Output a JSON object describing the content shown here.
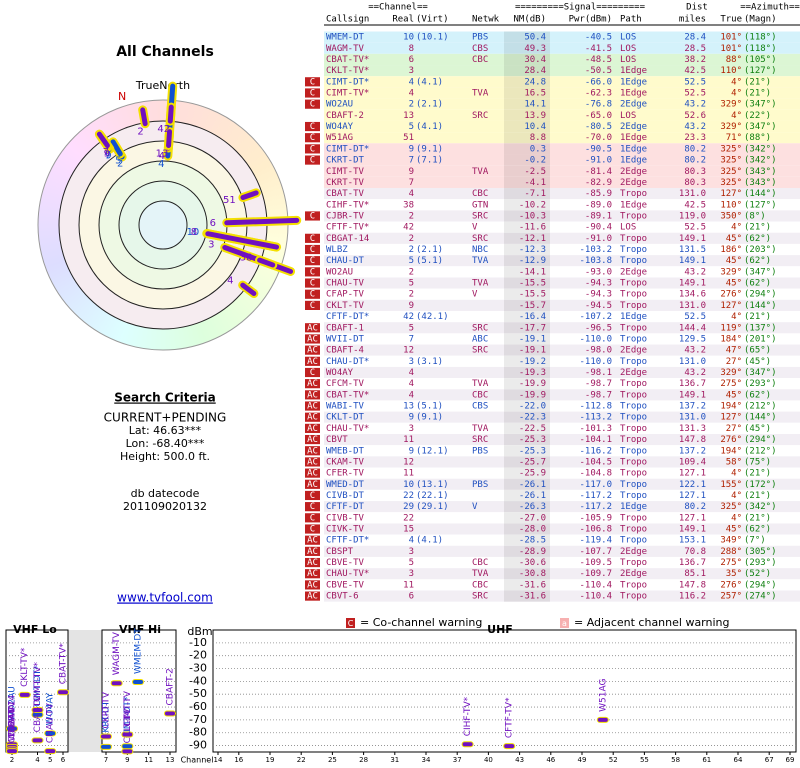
{
  "left": {
    "title": "All Channels",
    "north": "TrueNorth",
    "n_marker": "N",
    "criteria_title": "Search Criteria",
    "criteria": [
      "CURRENT+PENDING",
      "Lat: 46.63***",
      "Lon: -68.40***",
      "Height: 500.0 ft."
    ],
    "datecode_label": "db datecode",
    "datecode": "201109020132",
    "link": "www.tvfool.com"
  },
  "table": {
    "groups": [
      "==Channel==",
      "=========Signal=========",
      "Dist",
      "==Azimuth=="
    ],
    "columns": [
      "Callsign",
      "Real",
      "(Virt)",
      "Netwk",
      "NM(dB)",
      "Pwr(dBm)",
      "Path",
      "miles",
      "True",
      "(Magn)"
    ],
    "rows": [
      [
        null,
        "WMEM-DT",
        "10",
        "(10.1)",
        "PBS",
        "50.4",
        "-40.5",
        "LOS",
        "28.4",
        "101°",
        "(118°)"
      ],
      [
        null,
        "WAGM-TV",
        "8",
        null,
        "CBS",
        "49.3",
        "-41.5",
        "LOS",
        "28.5",
        "101°",
        "(118°)"
      ],
      [
        null,
        "CBAT-TV*",
        "6",
        null,
        "CBC",
        "30.4",
        "-48.5",
        "LOS",
        "38.2",
        "88°",
        "(105°)"
      ],
      [
        null,
        "CKLT-TV*",
        "3",
        null,
        null,
        "28.4",
        "-50.5",
        "1Edge",
        "42.5",
        "110°",
        "(127°)"
      ],
      [
        "C",
        "CIMT-DT*",
        "4",
        "(4.1)",
        null,
        "24.8",
        "-66.0",
        "1Edge",
        "52.5",
        "4°",
        "(21°)"
      ],
      [
        "C",
        "CIMT-TV*",
        "4",
        null,
        "TVA",
        "16.5",
        "-62.3",
        "1Edge",
        "52.5",
        "4°",
        "(21°)"
      ],
      [
        "C",
        "WO2AU",
        "2",
        "(2.1)",
        null,
        "14.1",
        "-76.8",
        "2Edge",
        "43.2",
        "329°",
        "(347°)"
      ],
      [
        null,
        "CBAFT-2",
        "13",
        null,
        "SRC",
        "13.9",
        "-65.0",
        "LOS",
        "52.6",
        "4°",
        "(22°)"
      ],
      [
        "C",
        "WO4AY",
        "5",
        "(4.1)",
        null,
        "10.4",
        "-80.5",
        "2Edge",
        "43.2",
        "329°",
        "(347°)"
      ],
      [
        "C",
        "W51AG",
        "51",
        null,
        null,
        "8.8",
        "-70.0",
        "1Edge",
        "23.3",
        "71°",
        "(88°)"
      ],
      [
        "C",
        "CIMT-DT*",
        "9",
        "(9.1)",
        null,
        "0.3",
        "-90.5",
        "1Edge",
        "80.2",
        "325°",
        "(342°)"
      ],
      [
        "C",
        "CKRT-DT",
        "7",
        "(7.1)",
        null,
        "-0.2",
        "-91.0",
        "1Edge",
        "80.2",
        "325°",
        "(342°)"
      ],
      [
        null,
        "CIMT-TV",
        "9",
        null,
        "TVA",
        "-2.5",
        "-81.4",
        "2Edge",
        "80.3",
        "325°",
        "(343°)"
      ],
      [
        null,
        "CKRT-TV",
        "7",
        null,
        null,
        "-4.1",
        "-82.9",
        "2Edge",
        "80.3",
        "325°",
        "(343°)"
      ],
      [
        null,
        "CBAT-TV",
        "4",
        null,
        "CBC",
        "-7.1",
        "-85.9",
        "Tropo",
        "131.0",
        "127°",
        "(144°)"
      ],
      [
        null,
        "CIHF-TV*",
        "38",
        null,
        "GTN",
        "-10.2",
        "-89.0",
        "1Edge",
        "42.5",
        "110°",
        "(127°)"
      ],
      [
        "C",
        "CJBR-TV",
        "2",
        null,
        "SRC",
        "-10.3",
        "-89.1",
        "Tropo",
        "119.0",
        "350°",
        "(8°)"
      ],
      [
        null,
        "CFTF-TV*",
        "42",
        null,
        "V",
        "-11.6",
        "-90.4",
        "LOS",
        "52.5",
        "4°",
        "(21°)"
      ],
      [
        "C",
        "CBGAT-14",
        "2",
        null,
        "SRC",
        "-12.1",
        "-91.0",
        "Tropo",
        "149.1",
        "45°",
        "(62°)"
      ],
      [
        "C",
        "WLBZ",
        "2",
        "(2.1)",
        "NBC",
        "-12.3",
        "-103.2",
        "Tropo",
        "131.5",
        "186°",
        "(203°)"
      ],
      [
        "C",
        "CHAU-DT",
        "5",
        "(5.1)",
        "TVA",
        "-12.9",
        "-103.8",
        "Tropo",
        "149.1",
        "45°",
        "(62°)"
      ],
      [
        "C",
        "WO2AU",
        "2",
        null,
        null,
        "-14.1",
        "-93.0",
        "2Edge",
        "43.2",
        "329°",
        "(347°)"
      ],
      [
        "C",
        "CHAU-TV",
        "5",
        null,
        "TVA",
        "-15.5",
        "-94.3",
        "Tropo",
        "149.1",
        "45°",
        "(62°)"
      ],
      [
        "C",
        "CFAP-TV",
        "2",
        null,
        "V",
        "-15.5",
        "-94.3",
        "Tropo",
        "134.6",
        "276°",
        "(294°)"
      ],
      [
        "C",
        "CKLT-TV",
        "9",
        null,
        null,
        "-15.7",
        "-94.5",
        "Tropo",
        "131.0",
        "127°",
        "(144°)"
      ],
      [
        null,
        "CFTF-DT*",
        "42",
        "(42.1)",
        null,
        "-16.4",
        "-107.2",
        "1Edge",
        "52.5",
        "4°",
        "(21°)"
      ],
      [
        "AC",
        "CBAFT-1",
        "5",
        null,
        "SRC",
        "-17.7",
        "-96.5",
        "Tropo",
        "144.4",
        "119°",
        "(137°)"
      ],
      [
        "AC",
        "WVII-DT",
        "7",
        null,
        "ABC",
        "-19.1",
        "-110.0",
        "Tropo",
        "129.5",
        "184°",
        "(201°)"
      ],
      [
        "AC",
        "CBAFT-4",
        "12",
        null,
        "SRC",
        "-19.1",
        "-98.0",
        "2Edge",
        "43.2",
        "47°",
        "(65°)"
      ],
      [
        "AC",
        "CHAU-DT*",
        "3",
        "(3.1)",
        null,
        "-19.2",
        "-110.0",
        "Tropo",
        "131.0",
        "27°",
        "(45°)"
      ],
      [
        "C",
        "WO4AY",
        "4",
        null,
        null,
        "-19.3",
        "-98.1",
        "2Edge",
        "43.2",
        "329°",
        "(347°)"
      ],
      [
        "AC",
        "CFCM-TV",
        "4",
        null,
        "TVA",
        "-19.9",
        "-98.7",
        "Tropo",
        "136.7",
        "275°",
        "(293°)"
      ],
      [
        "AC",
        "CBAT-TV*",
        "4",
        null,
        "CBC",
        "-19.9",
        "-98.7",
        "Tropo",
        "149.1",
        "45°",
        "(62°)"
      ],
      [
        "AC",
        "WABI-TV",
        "13",
        "(5.1)",
        "CBS",
        "-22.0",
        "-112.8",
        "Tropo",
        "137.2",
        "194°",
        "(212°)"
      ],
      [
        "AC",
        "CKLT-DT",
        "9",
        "(9.1)",
        null,
        "-22.3",
        "-113.2",
        "Tropo",
        "131.0",
        "127°",
        "(144°)"
      ],
      [
        "AC",
        "CHAU-TV*",
        "3",
        null,
        "TVA",
        "-22.5",
        "-101.3",
        "Tropo",
        "131.3",
        "27°",
        "(45°)"
      ],
      [
        "AC",
        "CBVT",
        "11",
        null,
        "SRC",
        "-25.3",
        "-104.1",
        "Tropo",
        "147.8",
        "276°",
        "(294°)"
      ],
      [
        "AC",
        "WMEB-DT",
        "9",
        "(12.1)",
        "PBS",
        "-25.3",
        "-116.2",
        "Tropo",
        "137.2",
        "194°",
        "(212°)"
      ],
      [
        "AC",
        "CKAM-TV",
        "12",
        null,
        null,
        "-25.7",
        "-104.5",
        "Tropo",
        "109.4",
        "58°",
        "(75°)"
      ],
      [
        "AC",
        "CFER-TV",
        "11",
        null,
        null,
        "-25.9",
        "-104.8",
        "Tropo",
        "127.1",
        "4°",
        "(21°)"
      ],
      [
        "AC",
        "WMED-DT",
        "10",
        "(13.1)",
        "PBS",
        "-26.1",
        "-117.0",
        "Tropo",
        "122.1",
        "155°",
        "(172°)"
      ],
      [
        "C",
        "CIVB-DT",
        "22",
        "(22.1)",
        null,
        "-26.1",
        "-117.2",
        "Tropo",
        "127.1",
        "4°",
        "(21°)"
      ],
      [
        "C",
        "CFTF-DT",
        "29",
        "(29.1)",
        "V",
        "-26.3",
        "-117.2",
        "1Edge",
        "80.2",
        "325°",
        "(342°)"
      ],
      [
        "C",
        "CIVB-TV",
        "22",
        null,
        null,
        "-27.0",
        "-105.9",
        "Tropo",
        "127.1",
        "4°",
        "(21°)"
      ],
      [
        "C",
        "CIVK-TV",
        "15",
        null,
        null,
        "-28.0",
        "-106.8",
        "Tropo",
        "149.1",
        "45°",
        "(62°)"
      ],
      [
        "AC",
        "CFTF-DT*",
        "4",
        "(4.1)",
        null,
        "-28.5",
        "-119.4",
        "Tropo",
        "153.1",
        "349°",
        "(7°)"
      ],
      [
        "AC",
        "CBSPT",
        "3",
        null,
        null,
        "-28.9",
        "-107.7",
        "2Edge",
        "70.8",
        "288°",
        "(305°)"
      ],
      [
        "AC",
        "CBVE-TV",
        "5",
        null,
        "CBC",
        "-30.6",
        "-109.5",
        "Tropo",
        "136.7",
        "275°",
        "(293°)"
      ],
      [
        "AC",
        "CHAU-TV*",
        "3",
        null,
        "TVA",
        "-30.8",
        "-109.7",
        "2Edge",
        "85.1",
        "35°",
        "(52°)"
      ],
      [
        "AC",
        "CBVE-TV",
        "11",
        null,
        "CBC",
        "-31.6",
        "-110.4",
        "Tropo",
        "147.8",
        "276°",
        "(294°)"
      ],
      [
        "AC",
        "CBVT-6",
        "6",
        null,
        "SRC",
        "-31.6",
        "-110.4",
        "Tropo",
        "116.2",
        "257°",
        "(274°)"
      ]
    ]
  },
  "spectrum": {
    "legend": [
      {
        "icon": "C",
        "text": "= Co-channel warning"
      },
      {
        "icon": "a",
        "text": "= Adjacent channel warning"
      }
    ],
    "y_label": "dBm",
    "x_label": "Channel",
    "ylim": [
      -95,
      0
    ],
    "yticks": [
      -10,
      -20,
      -30,
      -40,
      -50,
      -60,
      -70,
      -80,
      -90
    ],
    "bands": [
      {
        "label": "VHF Lo",
        "xlim": [
          2,
          6
        ],
        "xticks": [
          2,
          4,
          5,
          6
        ]
      },
      {
        "label": "VHF Hi",
        "xlim": [
          7,
          13
        ],
        "xticks": [
          7,
          9,
          11,
          13
        ]
      },
      {
        "label": "UHF",
        "xlim": [
          14,
          69
        ],
        "xticks": [
          14,
          16,
          19,
          22,
          25,
          28,
          31,
          34,
          37,
          40,
          43,
          46,
          49,
          52,
          55,
          58,
          61,
          64,
          67,
          69
        ]
      }
    ]
  }
}
